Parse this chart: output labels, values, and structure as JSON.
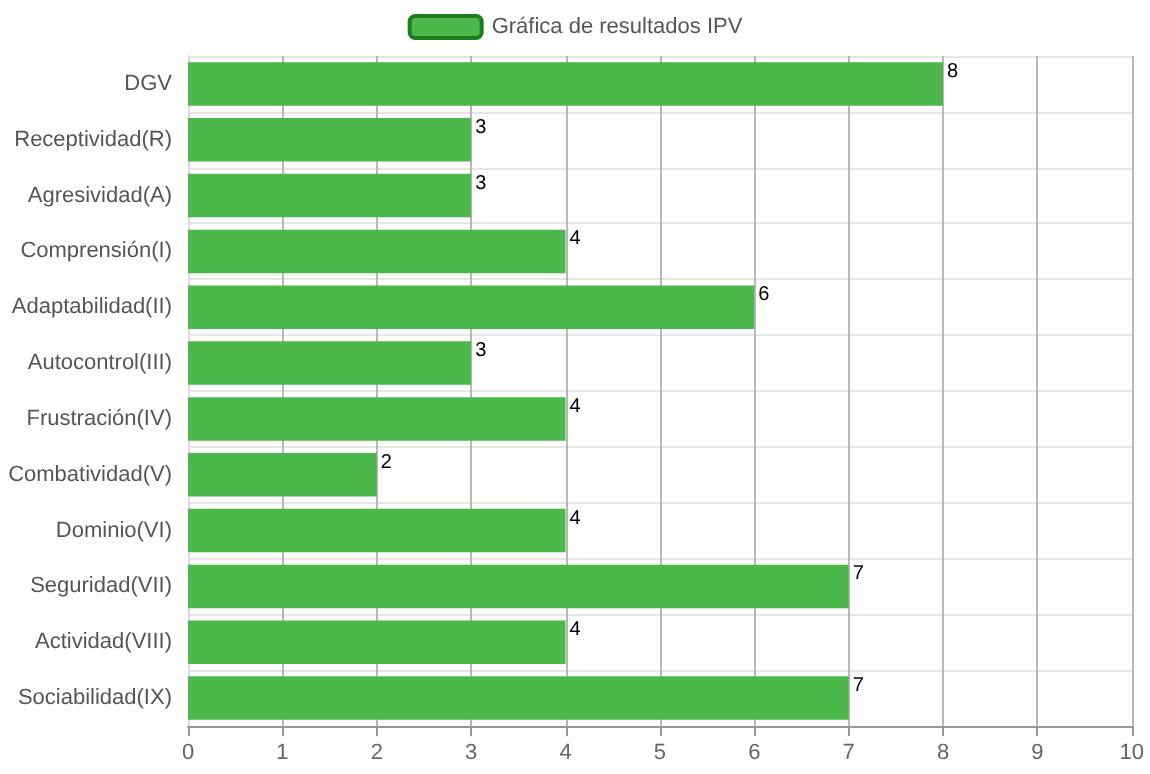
{
  "chart_data": {
    "type": "bar",
    "orientation": "horizontal",
    "categories": [
      "DGV",
      "Receptividad(R)",
      "Agresividad(A)",
      "Comprensión(I)",
      "Adaptabilidad(II)",
      "Autocontrol(III)",
      "Frustración(IV)",
      "Combatividad(V)",
      "Dominio(VI)",
      "Seguridad(VII)",
      "Actividad(VIII)",
      "Sociabilidad(IX)"
    ],
    "series": [
      {
        "name": "Gráfica de resultados IPV",
        "color": "#4cb84c",
        "values": [
          8,
          3,
          3,
          4,
          6,
          3,
          4,
          2,
          4,
          7,
          4,
          7
        ]
      }
    ],
    "xlim": [
      0,
      10
    ],
    "xticks": [
      0,
      1,
      2,
      3,
      4,
      5,
      6,
      7,
      8,
      9,
      10
    ],
    "grid": true,
    "legend": "top",
    "data_labels": true
  }
}
